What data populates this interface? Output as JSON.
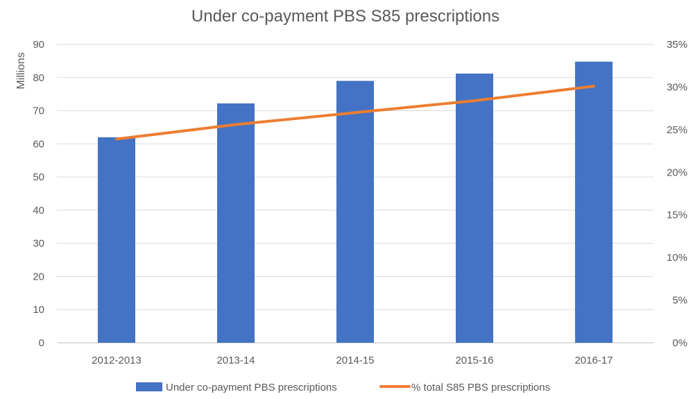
{
  "chart_data": {
    "type": "bar",
    "title": "Under co-payment PBS S85 prescriptions",
    "categories": [
      "2012-2013",
      "2013-14",
      "2014-15",
      "2015-16",
      "2016-17"
    ],
    "ylabel": "Millions",
    "ylim": [
      0,
      90
    ],
    "y_ticks": [
      "0",
      "10",
      "20",
      "30",
      "40",
      "50",
      "60",
      "70",
      "80",
      "90"
    ],
    "y2lim": [
      0,
      0.35
    ],
    "y2_ticks": [
      "0%",
      "5%",
      "10%",
      "15%",
      "20%",
      "25%",
      "30%",
      "35%"
    ],
    "grid": true,
    "legend_position": "bottom",
    "series": [
      {
        "name": "Under co-payment PBS prescriptions",
        "type": "bar",
        "axis": "left",
        "color": "#4472C4",
        "values": [
          62,
          72.2,
          79,
          81.2,
          84.8
        ]
      },
      {
        "name": "% total S85 PBS prescriptions",
        "type": "line",
        "axis": "right",
        "color": "#ED7D31",
        "values": [
          0.239,
          0.256,
          0.27,
          0.284,
          0.301
        ]
      }
    ]
  }
}
